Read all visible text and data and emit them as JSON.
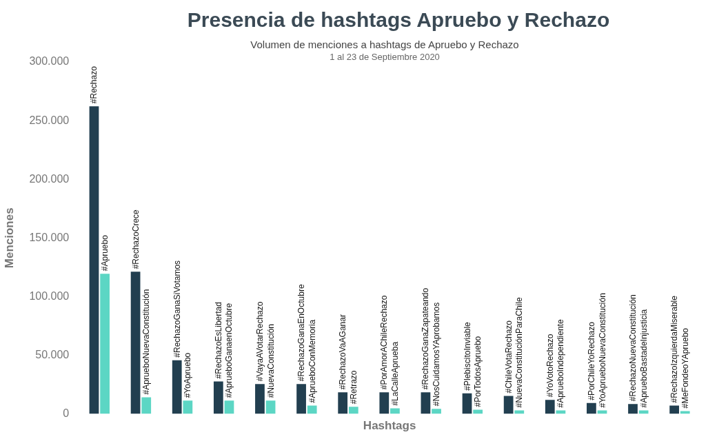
{
  "chart_data": {
    "type": "bar",
    "title": "Presencia de hashtags Apruebo y Rechazo",
    "subtitle": "Volumen de menciones a hashtags de Apruebo y Rechazo",
    "annotations": [
      "1 al 23 de Septiembre 2020"
    ],
    "xlabel": "Hashtags",
    "ylabel": "Menciones",
    "categories": [
      null,
      null,
      null,
      null,
      null,
      null,
      null,
      null,
      null,
      null,
      null,
      null,
      null,
      null,
      null
    ],
    "series": [
      {
        "color": "#223f50",
        "values": [
          262300,
          121200,
          45800,
          27700,
          25500,
          25500,
          18400,
          18400,
          18400,
          17600,
          15400,
          12000,
          9300,
          8500,
          7100
        ],
        "value_labels": [
          "#Rechazo",
          "#RechazoCrece",
          "#RechazoGanaSiVotamos",
          "#RechazoEsLibertad",
          "#VayaAVotarRechazo",
          "#RechazoGanaEnOctubre",
          "#RechazoVaAGanar",
          "#PorAmorAChileRechazo",
          "#RechazoGanaZapateando",
          "#PlebiscitoInviable",
          "#ChileVotaRechazo",
          "#YoVotoRechazo",
          "#PorChileYoRechazo",
          "#RechazoNuevaConstitución",
          "#RechazoIzquierdaMiserable"
        ]
      },
      {
        "color": "#5cd6c4",
        "values": [
          119500,
          14200,
          11300,
          11300,
          11300,
          7100,
          6100,
          4700,
          4300,
          3600,
          3000,
          3000,
          3000,
          3000,
          2400
        ],
        "value_labels": [
          "#Apruebo",
          "#AprueboNuevaConstitución",
          "#YoApruebo",
          "#AprueboGanaenOctubre",
          "#NuevaConstitución",
          "#AprueboConMemoria",
          "#Retrazo",
          "#LaCalleAprueba",
          "#NosCuidamosYAprobamos",
          "#PorTodosApruebo",
          "#NuevaConstituciónParaChile",
          "#AprueboIndependiente",
          "#YoAprueboNuevaConstitución",
          "#AprueboBastadeInjusticia",
          "#MeFondeoYApruebo"
        ]
      }
    ],
    "ylim": [
      0,
      300000
    ],
    "yticks": [
      {
        "value": 0,
        "label": "0"
      },
      {
        "value": 50000,
        "label": "50.000"
      },
      {
        "value": 100000,
        "label": "100.000"
      },
      {
        "value": 150000,
        "label": "150.000"
      },
      {
        "value": 200000,
        "label": "200.000"
      },
      {
        "value": 250000,
        "label": "250.000"
      },
      {
        "value": 300000,
        "label": "300.000"
      }
    ],
    "grid": false,
    "legend": false
  }
}
